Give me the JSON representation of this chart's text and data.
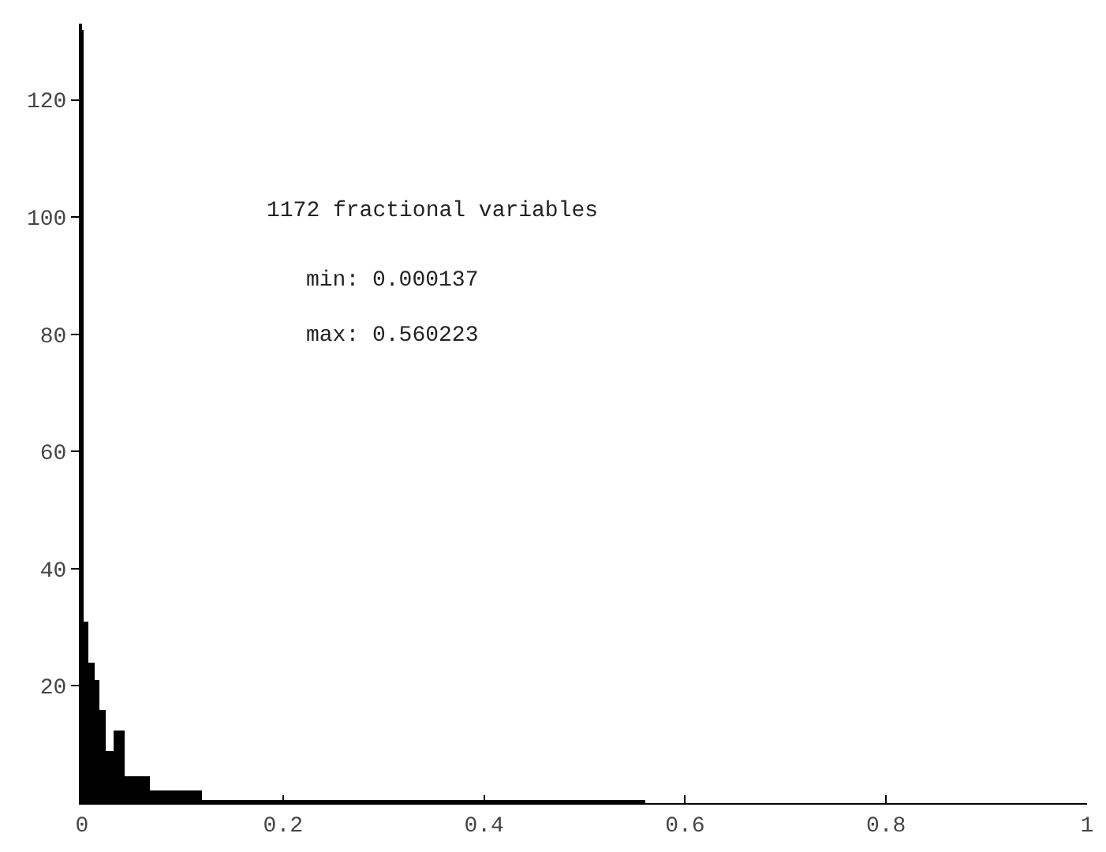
{
  "chart_data": {
    "type": "histogram",
    "bins": [
      0,
      0.0015,
      0.0062,
      0.0129,
      0.0171,
      0.0233,
      0.031,
      0.0429,
      0.0682,
      0.119,
      0.560223
    ],
    "values": [
      132,
      31,
      24,
      21,
      16,
      9,
      12.5,
      4.5,
      2.2,
      0.6
    ],
    "color": "#000000",
    "xlim": [
      0,
      1
    ],
    "ylim": [
      0,
      133
    ],
    "xticks": [
      0,
      0.2,
      0.4,
      0.6,
      0.8,
      1
    ],
    "yticks": [
      20,
      40,
      60,
      80,
      100,
      120
    ],
    "annotations": [
      "1172 fractional variables",
      "min: 0.000137",
      "max: 0.560223"
    ]
  }
}
